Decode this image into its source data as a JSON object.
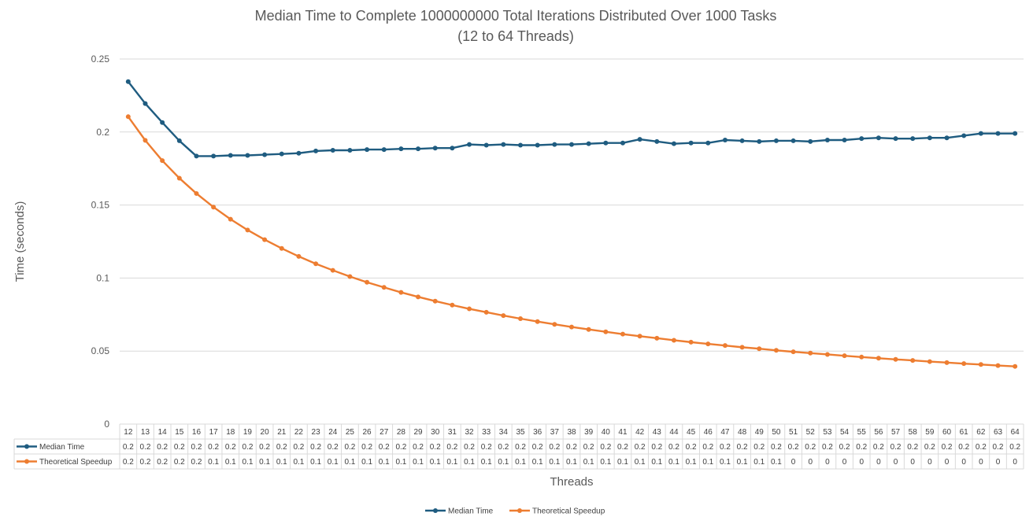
{
  "chart_data": {
    "type": "line",
    "title": "Median Time to Complete 1000000000 Total Iterations Distributed Over 1000 Tasks",
    "subtitle": "(12 to 64 Threads)",
    "xlabel": "Threads",
    "ylabel": "Time (seconds)",
    "ylim": [
      0,
      0.25
    ],
    "yticks": [
      "0",
      "0.05",
      "0.1",
      "0.15",
      "0.2",
      "0.25"
    ],
    "grid": true,
    "legend_position": "bottom",
    "data_table": true,
    "x": [
      12,
      13,
      14,
      15,
      16,
      17,
      18,
      19,
      20,
      21,
      22,
      23,
      24,
      25,
      26,
      27,
      28,
      29,
      30,
      31,
      32,
      33,
      34,
      35,
      36,
      37,
      38,
      39,
      40,
      41,
      42,
      43,
      44,
      45,
      46,
      47,
      48,
      49,
      50,
      51,
      52,
      53,
      54,
      55,
      56,
      57,
      58,
      59,
      60,
      61,
      62,
      63,
      64
    ],
    "series": [
      {
        "name": "Median Time",
        "color": "#1f5c80",
        "values": [
          0.2345,
          0.2195,
          0.2065,
          0.194,
          0.1835,
          0.1835,
          0.184,
          0.184,
          0.1845,
          0.185,
          0.1855,
          0.187,
          0.1875,
          0.1875,
          0.188,
          0.188,
          0.1885,
          0.1885,
          0.189,
          0.189,
          0.1915,
          0.191,
          0.1915,
          0.191,
          0.191,
          0.1915,
          0.1915,
          0.192,
          0.1925,
          0.1925,
          0.195,
          0.1935,
          0.192,
          0.1925,
          0.1925,
          0.1945,
          0.194,
          0.1935,
          0.194,
          0.194,
          0.1935,
          0.1945,
          0.1945,
          0.1955,
          0.196,
          0.1955,
          0.1955,
          0.196,
          0.196,
          0.1975,
          0.199,
          0.199,
          0.199
        ],
        "table_values": [
          "0.2",
          "0.2",
          "0.2",
          "0.2",
          "0.2",
          "0.2",
          "0.2",
          "0.2",
          "0.2",
          "0.2",
          "0.2",
          "0.2",
          "0.2",
          "0.2",
          "0.2",
          "0.2",
          "0.2",
          "0.2",
          "0.2",
          "0.2",
          "0.2",
          "0.2",
          "0.2",
          "0.2",
          "0.2",
          "0.2",
          "0.2",
          "0.2",
          "0.2",
          "0.2",
          "0.2",
          "0.2",
          "0.2",
          "0.2",
          "0.2",
          "0.2",
          "0.2",
          "0.2",
          "0.2",
          "0.2",
          "0.2",
          "0.2",
          "0.2",
          "0.2",
          "0.2",
          "0.2",
          "0.2",
          "0.2",
          "0.2",
          "0.2",
          "0.2",
          "0.2",
          "0.2"
        ]
      },
      {
        "name": "Theoretical Speedup",
        "color": "#ed7d31",
        "values": [
          0.2105,
          0.1943,
          0.1804,
          0.1684,
          0.1579,
          0.1486,
          0.1403,
          0.1329,
          0.1263,
          0.1203,
          0.1148,
          0.1098,
          0.1053,
          0.101,
          0.0971,
          0.0936,
          0.0902,
          0.0871,
          0.0842,
          0.0815,
          0.0789,
          0.0766,
          0.0743,
          0.0722,
          0.0702,
          0.0683,
          0.0665,
          0.0648,
          0.0632,
          0.0616,
          0.0602,
          0.0588,
          0.0574,
          0.0561,
          0.0549,
          0.0538,
          0.0526,
          0.0516,
          0.0505,
          0.0495,
          0.0486,
          0.0477,
          0.0468,
          0.0459,
          0.0451,
          0.0443,
          0.0436,
          0.0428,
          0.0421,
          0.0414,
          0.0408,
          0.0401,
          0.0395
        ],
        "table_values": [
          "0.2",
          "0.2",
          "0.2",
          "0.2",
          "0.2",
          "0.1",
          "0.1",
          "0.1",
          "0.1",
          "0.1",
          "0.1",
          "0.1",
          "0.1",
          "0.1",
          "0.1",
          "0.1",
          "0.1",
          "0.1",
          "0.1",
          "0.1",
          "0.1",
          "0.1",
          "0.1",
          "0.1",
          "0.1",
          "0.1",
          "0.1",
          "0.1",
          "0.1",
          "0.1",
          "0.1",
          "0.1",
          "0.1",
          "0.1",
          "0.1",
          "0.1",
          "0.1",
          "0.1",
          "0.1",
          "0",
          "0",
          "0",
          "0",
          "0",
          "0",
          "0",
          "0",
          "0",
          "0",
          "0",
          "0",
          "0",
          "0"
        ]
      }
    ]
  }
}
